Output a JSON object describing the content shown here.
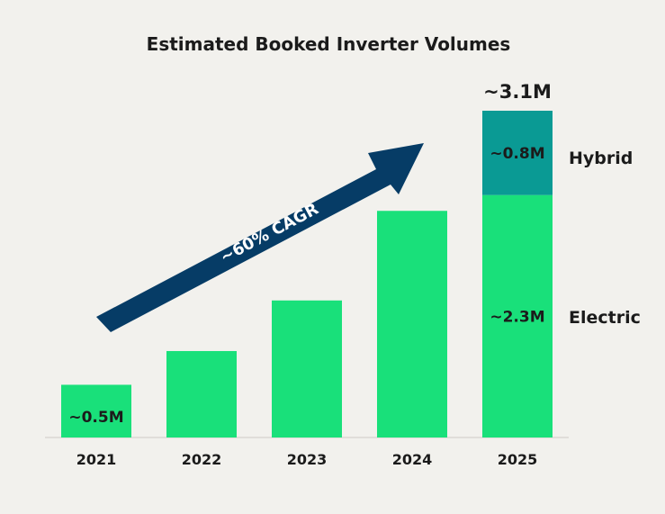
{
  "chart_data": {
    "type": "bar",
    "stacked": true,
    "title": "Estimated Booked Inverter Volumes",
    "categories": [
      "2021",
      "2022",
      "2023",
      "2024",
      "2025"
    ],
    "series": [
      {
        "name": "Electric",
        "color": "#19e07a",
        "values": [
          0.5,
          0.82,
          1.3,
          2.15,
          2.3
        ]
      },
      {
        "name": "Hybrid",
        "color": "#0a9a94",
        "values": [
          0,
          0,
          0,
          0,
          0.8
        ]
      }
    ],
    "ylim": [
      0,
      3.1
    ],
    "data_labels": {
      "2021": "~0.5M",
      "2025_electric": "~2.3M",
      "2025_hybrid": "~0.8M",
      "2025_total": "~3.1M"
    },
    "annotation": {
      "text": "~60% CAGR",
      "arrow_color": "#063c66"
    },
    "legend": {
      "hybrid": "Hybrid",
      "electric": "Electric",
      "placement": "right"
    },
    "xlabel": "",
    "ylabel": ""
  }
}
